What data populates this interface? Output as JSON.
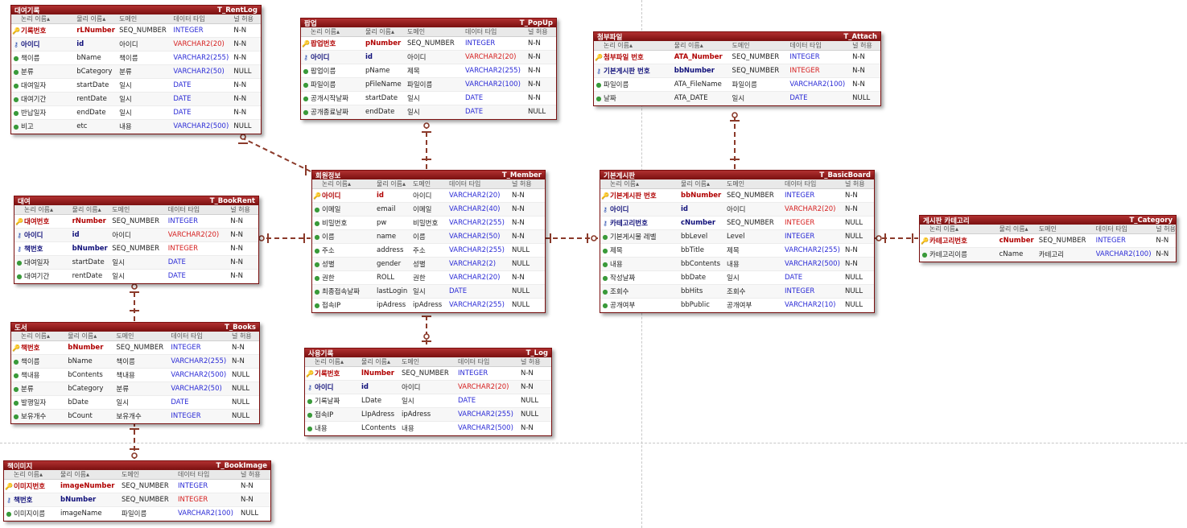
{
  "header_labels": {
    "logical": "논리 이름▴",
    "physical": "물리 이름▴",
    "domain": "도메인",
    "type": "데이터 타입",
    "null": "널 허용"
  },
  "colors": {
    "header": "#8b1414",
    "relationship": "#8b3a2a",
    "pk": "#b00000",
    "type": "#2b2bd6"
  },
  "entities": [
    {
      "id": "rentlog",
      "logical": "대여기록",
      "physical": "T_RentLog",
      "rows": [
        {
          "k": "pk",
          "log": "기록번호",
          "phy": "rLNumber",
          "dom": "SEQ_NUMBER",
          "type": "INTEGER",
          "nul": "N-N"
        },
        {
          "k": "fk",
          "log": "아이디",
          "phy": "id",
          "dom": "아이디",
          "type": "VARCHAR2(20)",
          "nul": "N-N"
        },
        {
          "k": "at",
          "log": "책이름",
          "phy": "bName",
          "dom": "책이름",
          "type": "VARCHAR2(255)",
          "nul": "N-N"
        },
        {
          "k": "at",
          "log": "분류",
          "phy": "bCategory",
          "dom": "분류",
          "type": "VARCHAR2(50)",
          "nul": "NULL"
        },
        {
          "k": "at",
          "log": "대여일자",
          "phy": "startDate",
          "dom": "일시",
          "type": "DATE",
          "nul": "N-N"
        },
        {
          "k": "at",
          "log": "대여기간",
          "phy": "rentDate",
          "dom": "일시",
          "type": "DATE",
          "nul": "N-N"
        },
        {
          "k": "at",
          "log": "반납일자",
          "phy": "endDate",
          "dom": "일시",
          "type": "DATE",
          "nul": "N-N"
        },
        {
          "k": "at",
          "log": "비고",
          "phy": "etc",
          "dom": "내용",
          "type": "VARCHAR2(500)",
          "nul": "NULL"
        }
      ]
    },
    {
      "id": "popup",
      "logical": "팝업",
      "physical": "T_PopUp",
      "rows": [
        {
          "k": "pk",
          "log": "팝업번호",
          "phy": "pNumber",
          "dom": "SEQ_NUMBER",
          "type": "INTEGER",
          "nul": "N-N"
        },
        {
          "k": "fk",
          "log": "아이디",
          "phy": "id",
          "dom": "아이디",
          "type": "VARCHAR2(20)",
          "nul": "N-N"
        },
        {
          "k": "at",
          "log": "팝업이름",
          "phy": "pName",
          "dom": "제목",
          "type": "VARCHAR2(255)",
          "nul": "N-N"
        },
        {
          "k": "at",
          "log": "파일이름",
          "phy": "pFileName",
          "dom": "파일이름",
          "type": "VARCHAR2(100)",
          "nul": "N-N"
        },
        {
          "k": "at",
          "log": "공개시작날짜",
          "phy": "startDate",
          "dom": "일시",
          "type": "DATE",
          "nul": "N-N"
        },
        {
          "k": "at",
          "log": "공개종료날짜",
          "phy": "endDate",
          "dom": "일시",
          "type": "DATE",
          "nul": "NULL"
        }
      ]
    },
    {
      "id": "attach",
      "logical": "첨부파일",
      "physical": "T_Attach",
      "rows": [
        {
          "k": "pk",
          "log": "첨부파일 번호",
          "phy": "ATA_Number",
          "dom": "SEQ_NUMBER",
          "type": "INTEGER",
          "nul": "N-N"
        },
        {
          "k": "fk",
          "log": "기본게시판 번호",
          "phy": "bbNumber",
          "dom": "SEQ_NUMBER",
          "type": "INTEGER",
          "nul": "N-N"
        },
        {
          "k": "at",
          "log": "파일이름",
          "phy": "ATA_FileName",
          "dom": "파일이름",
          "type": "VARCHAR2(100)",
          "nul": "N-N"
        },
        {
          "k": "at",
          "log": "날짜",
          "phy": "ATA_DATE",
          "dom": "일시",
          "type": "DATE",
          "nul": "NULL"
        }
      ]
    },
    {
      "id": "member",
      "logical": "회원정보",
      "physical": "T_Member",
      "rows": [
        {
          "k": "pk",
          "log": "아이디",
          "phy": "id",
          "dom": "아이디",
          "type": "VARCHAR2(20)",
          "nul": "N-N"
        },
        {
          "k": "at",
          "log": "이메일",
          "phy": "email",
          "dom": "이메일",
          "type": "VARCHAR2(40)",
          "nul": "N-N"
        },
        {
          "k": "at",
          "log": "비밀번호",
          "phy": "pw",
          "dom": "비밀번호",
          "type": "VARCHAR2(255)",
          "nul": "N-N"
        },
        {
          "k": "at",
          "log": "이름",
          "phy": "name",
          "dom": "이름",
          "type": "VARCHAR2(50)",
          "nul": "N-N"
        },
        {
          "k": "at",
          "log": "주소",
          "phy": "address",
          "dom": "주소",
          "type": "VARCHAR2(255)",
          "nul": "NULL"
        },
        {
          "k": "at",
          "log": "성별",
          "phy": "gender",
          "dom": "성별",
          "type": "VARCHAR2(2)",
          "nul": "NULL"
        },
        {
          "k": "at",
          "log": "권한",
          "phy": "ROLL",
          "dom": "권한",
          "type": "VARCHAR2(20)",
          "nul": "N-N"
        },
        {
          "k": "at",
          "log": "최종접속날짜",
          "phy": "lastLogin",
          "dom": "일시",
          "type": "DATE",
          "nul": "NULL"
        },
        {
          "k": "at",
          "log": "접속IP",
          "phy": "ipAdress",
          "dom": "ipAdress",
          "type": "VARCHAR2(255)",
          "nul": "NULL"
        }
      ]
    },
    {
      "id": "basicboard",
      "logical": "기본게시판",
      "physical": "T_BasicBoard",
      "rows": [
        {
          "k": "pk",
          "log": "기본게시판 번호",
          "phy": "bbNumber",
          "dom": "SEQ_NUMBER",
          "type": "INTEGER",
          "nul": "N-N"
        },
        {
          "k": "fk",
          "log": "아이디",
          "phy": "id",
          "dom": "아이디",
          "type": "VARCHAR2(20)",
          "nul": "N-N"
        },
        {
          "k": "fk",
          "log": "카테고리번호",
          "phy": "cNumber",
          "dom": "SEQ_NUMBER",
          "type": "INTEGER",
          "nul": "NULL"
        },
        {
          "k": "at",
          "log": "기본게시물 레벨",
          "phy": "bbLevel",
          "dom": "Level",
          "type": "INTEGER",
          "nul": "NULL"
        },
        {
          "k": "at",
          "log": "제목",
          "phy": "bbTitle",
          "dom": "제목",
          "type": "VARCHAR2(255)",
          "nul": "N-N"
        },
        {
          "k": "at",
          "log": "내용",
          "phy": "bbContents",
          "dom": "내용",
          "type": "VARCHAR2(500)",
          "nul": "N-N"
        },
        {
          "k": "at",
          "log": "작성날짜",
          "phy": "bbDate",
          "dom": "일시",
          "type": "DATE",
          "nul": "NULL"
        },
        {
          "k": "at",
          "log": "조회수",
          "phy": "bbHits",
          "dom": "조회수",
          "type": "INTEGER",
          "nul": "NULL"
        },
        {
          "k": "at",
          "log": "공개여부",
          "phy": "bbPublic",
          "dom": "공개여부",
          "type": "VARCHAR2(10)",
          "nul": "NULL"
        }
      ]
    },
    {
      "id": "bookrent",
      "logical": "대여",
      "physical": "T_BookRent",
      "rows": [
        {
          "k": "pk",
          "log": "대여번호",
          "phy": "rNumber",
          "dom": "SEQ_NUMBER",
          "type": "INTEGER",
          "nul": "N-N"
        },
        {
          "k": "fk",
          "log": "아이디",
          "phy": "id",
          "dom": "아이디",
          "type": "VARCHAR2(20)",
          "nul": "N-N"
        },
        {
          "k": "fk",
          "log": "책번호",
          "phy": "bNumber",
          "dom": "SEQ_NUMBER",
          "type": "INTEGER",
          "nul": "N-N"
        },
        {
          "k": "at",
          "log": "대여일자",
          "phy": "startDate",
          "dom": "일시",
          "type": "DATE",
          "nul": "N-N"
        },
        {
          "k": "at",
          "log": "대여기간",
          "phy": "rentDate",
          "dom": "일시",
          "type": "DATE",
          "nul": "N-N"
        }
      ]
    },
    {
      "id": "category",
      "logical": "게시판 카테고리",
      "physical": "T_Category",
      "rows": [
        {
          "k": "pk",
          "log": "카테고리번호",
          "phy": "cNumber",
          "dom": "SEQ_NUMBER",
          "type": "INTEGER",
          "nul": "N-N"
        },
        {
          "k": "at",
          "log": "카테고리이름",
          "phy": "cName",
          "dom": "카테고리",
          "type": "VARCHAR2(100)",
          "nul": "N-N"
        }
      ]
    },
    {
      "id": "books",
      "logical": "도서",
      "physical": "T_Books",
      "rows": [
        {
          "k": "pk",
          "log": "책번호",
          "phy": "bNumber",
          "dom": "SEQ_NUMBER",
          "type": "INTEGER",
          "nul": "N-N"
        },
        {
          "k": "at",
          "log": "책이름",
          "phy": "bName",
          "dom": "책이름",
          "type": "VARCHAR2(255)",
          "nul": "N-N"
        },
        {
          "k": "at",
          "log": "책내용",
          "phy": "bContents",
          "dom": "책내용",
          "type": "VARCHAR2(500)",
          "nul": "NULL"
        },
        {
          "k": "at",
          "log": "분류",
          "phy": "bCategory",
          "dom": "분류",
          "type": "VARCHAR2(50)",
          "nul": "NULL"
        },
        {
          "k": "at",
          "log": "발행일자",
          "phy": "bDate",
          "dom": "일시",
          "type": "DATE",
          "nul": "NULL"
        },
        {
          "k": "at",
          "log": "보유개수",
          "phy": "bCount",
          "dom": "보유개수",
          "type": "INTEGER",
          "nul": "NULL"
        }
      ]
    },
    {
      "id": "log",
      "logical": "사용기록",
      "physical": "T_Log",
      "rows": [
        {
          "k": "pk",
          "log": "기록번호",
          "phy": "lNumber",
          "dom": "SEQ_NUMBER",
          "type": "INTEGER",
          "nul": "N-N"
        },
        {
          "k": "fk",
          "log": "아이디",
          "phy": "id",
          "dom": "아이디",
          "type": "VARCHAR2(20)",
          "nul": "N-N"
        },
        {
          "k": "at",
          "log": "기록날짜",
          "phy": "LDate",
          "dom": "일시",
          "type": "DATE",
          "nul": "NULL"
        },
        {
          "k": "at",
          "log": "접속IP",
          "phy": "LIpAdress",
          "dom": "ipAdress",
          "type": "VARCHAR2(255)",
          "nul": "NULL"
        },
        {
          "k": "at",
          "log": "내용",
          "phy": "LContents",
          "dom": "내용",
          "type": "VARCHAR2(500)",
          "nul": "N-N"
        }
      ]
    },
    {
      "id": "bookimage",
      "logical": "책이미지",
      "physical": "T_BookImage",
      "rows": [
        {
          "k": "pk",
          "log": "이미지번호",
          "phy": "imageNumber",
          "dom": "SEQ_NUMBER",
          "type": "INTEGER",
          "nul": "N-N"
        },
        {
          "k": "fk",
          "log": "책번호",
          "phy": "bNumber",
          "dom": "SEQ_NUMBER",
          "type": "INTEGER",
          "nul": "N-N"
        },
        {
          "k": "at",
          "log": "이미지이름",
          "phy": "imageName",
          "dom": "파일이름",
          "type": "VARCHAR2(100)",
          "nul": "NULL"
        }
      ]
    }
  ]
}
